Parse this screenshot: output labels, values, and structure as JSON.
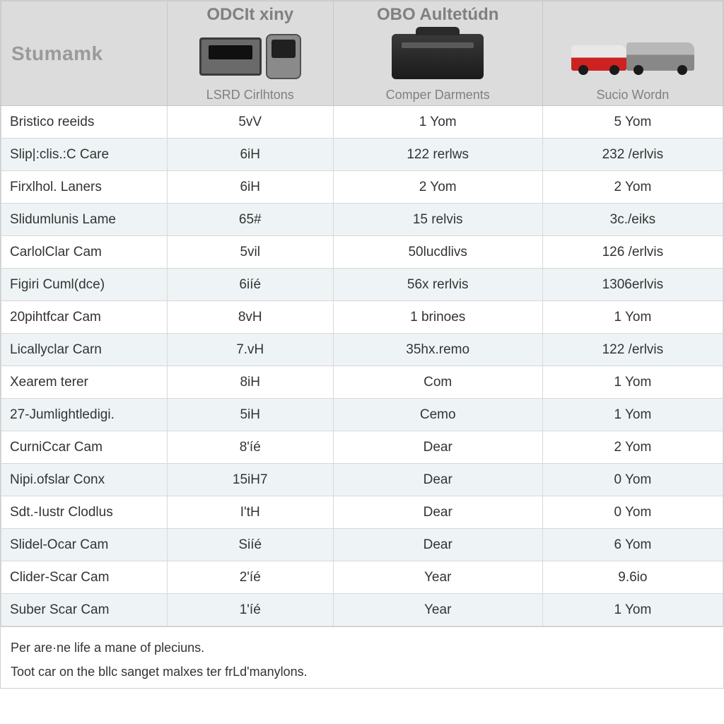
{
  "table": {
    "type": "table",
    "columns": [
      {
        "title": "Stumamk",
        "subtitle": "",
        "width_pct": 23,
        "align": "left"
      },
      {
        "title": "ODCIt xiny",
        "subtitle": "LSRD Cirlhtons",
        "width_pct": 23,
        "align": "center"
      },
      {
        "title": "OBO Aultetúdn",
        "subtitle": "Comper Darments",
        "width_pct": 29,
        "align": "center"
      },
      {
        "title": "",
        "subtitle": "Sucio Wordn",
        "width_pct": 25,
        "align": "center"
      }
    ],
    "header_bg": "#dcdcdc",
    "header_title_color": "#808080",
    "header_title_fontsize": 24,
    "header_subtitle_fontsize": 18,
    "col0_title_color": "#9a9a9a",
    "col0_title_fontsize": 28,
    "row_bg_even": "#ffffff",
    "row_bg_odd": "#eef4f5",
    "border_color": "#d8d8d8",
    "cell_text_color": "#333333",
    "cell_fontsize": 19,
    "rows": [
      [
        "Bristico reeids",
        "5vV",
        "1 Yom",
        "5 Yom"
      ],
      [
        "Slip|:clis.:C Care",
        "6iH",
        "122 rerlws",
        "232 /erlvis"
      ],
      [
        "Firxlhol. Laners",
        "6iH",
        "2 Yom",
        "2 Yom"
      ],
      [
        "Slidumlunis Lame",
        "65#",
        "15 relvis",
        "3c./eiks"
      ],
      [
        "CarlolClar Cam",
        "5vil",
        "50lucdlivs",
        "126 /erlvis"
      ],
      [
        "Figiri Cuml(dce)",
        "6iíé",
        "56x rerlvis",
        "1306erlvis"
      ],
      [
        "20pihtfcar Cam",
        "8vH",
        "1 brinoes",
        "1 Yom"
      ],
      [
        "Licallyclar Carn",
        "7.vH",
        "35hx.remo",
        "122 /erlvis"
      ],
      [
        "Xearem terer",
        "8iH",
        "Com",
        "1 Yom"
      ],
      [
        "27-Jumlightledigi.",
        "5iH",
        "Cemo",
        "1 Yom"
      ],
      [
        "CurniCcar Cam",
        "8'íé",
        "Dear",
        "2 Yom"
      ],
      [
        "Nipi.ofslar Conx",
        "15iH7",
        "Dear",
        "0 Yom"
      ],
      [
        "Sdt.-Iustr Clodlus",
        "I'tH",
        "Dear",
        "0 Yom"
      ],
      [
        "Slidel-Ocar Cam",
        "Siíé",
        "Dear",
        "6 Yom"
      ],
      [
        "Clider-Scar Cam",
        "2'íé",
        "Year",
        "9.6io"
      ],
      [
        "Suber Scar Cam",
        "1'íé",
        "Year",
        "1 Yom"
      ]
    ],
    "footer_notes": [
      "Per are·ne life a mane of pleciuns.",
      "Toot car on the bllc sanget malxes ter frLd'manylons."
    ]
  }
}
